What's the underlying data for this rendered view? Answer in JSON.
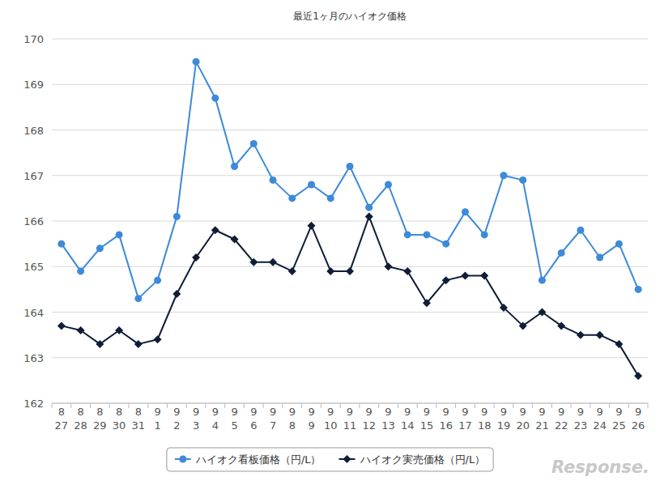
{
  "chart_data": {
    "type": "line",
    "title": "最近1ヶ月のハイオク価格",
    "categories": [
      "8\n27",
      "8\n28",
      "8\n29",
      "8\n30",
      "8\n31",
      "9\n1",
      "9\n2",
      "9\n3",
      "9\n4",
      "9\n5",
      "9\n6",
      "9\n7",
      "9\n8",
      "9\n9",
      "9\n10",
      "9\n11",
      "9\n12",
      "9\n13",
      "9\n14",
      "9\n15",
      "9\n16",
      "9\n17",
      "9\n18",
      "9\n19",
      "9\n20",
      "9\n21",
      "9\n22",
      "9\n23",
      "9\n24",
      "9\n25",
      "9\n26"
    ],
    "series": [
      {
        "name": "ハイオク看板価格（円/L）",
        "color": "#3d8ad8",
        "marker": "circle",
        "values": [
          165.5,
          164.9,
          165.4,
          165.7,
          164.3,
          164.7,
          166.1,
          169.5,
          168.7,
          167.2,
          167.7,
          166.9,
          166.5,
          166.8,
          166.5,
          167.2,
          166.3,
          166.8,
          165.7,
          165.7,
          165.5,
          166.2,
          165.7,
          167.0,
          166.9,
          164.7,
          165.3,
          165.8,
          165.2,
          165.5,
          164.5
        ]
      },
      {
        "name": "ハイオク実売価格（円/L）",
        "color": "#0f1d36",
        "marker": "diamond",
        "values": [
          163.7,
          163.6,
          163.3,
          163.6,
          163.3,
          163.4,
          164.4,
          165.2,
          165.8,
          165.6,
          165.1,
          165.1,
          164.9,
          165.9,
          164.9,
          164.9,
          166.1,
          165.0,
          164.9,
          164.2,
          164.7,
          164.8,
          164.8,
          164.1,
          163.7,
          164.0,
          163.7,
          163.5,
          163.5,
          163.3,
          162.6
        ]
      }
    ],
    "ylim": [
      162,
      170
    ],
    "yticks": [
      162,
      163,
      164,
      165,
      166,
      167,
      168,
      169,
      170
    ],
    "grid": true,
    "legend": "bottom",
    "source": "Response."
  }
}
